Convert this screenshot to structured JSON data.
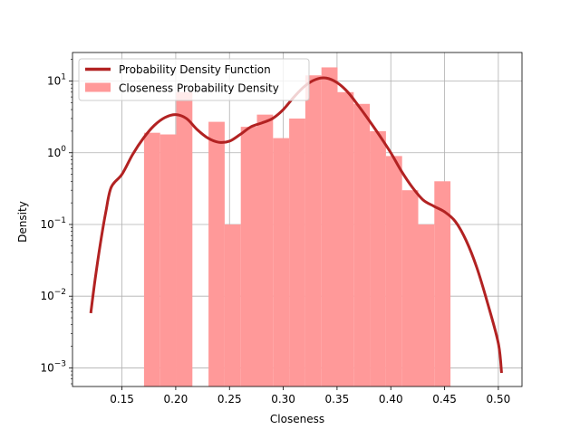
{
  "chart_data": {
    "type": "bar",
    "xlabel": "Closeness",
    "ylabel": "Density",
    "xlim": [
      0.104,
      0.522
    ],
    "ylim": [
      0.00055,
      25
    ],
    "yscale": "log",
    "grid": true,
    "legend_placement": "top-left",
    "x_ticks": [
      0.15,
      0.2,
      0.25,
      0.3,
      0.35,
      0.4,
      0.45,
      0.5
    ],
    "x_tick_labels": [
      "0.15",
      "0.20",
      "0.25",
      "0.30",
      "0.35",
      "0.40",
      "0.45",
      "0.50"
    ],
    "y_ticks": [
      {
        "value": 0.001,
        "base": "10",
        "exp": "−3"
      },
      {
        "value": 0.01,
        "base": "10",
        "exp": "−2"
      },
      {
        "value": 0.1,
        "base": "10",
        "exp": "−1"
      },
      {
        "value": 1,
        "base": "10",
        "exp": "0"
      },
      {
        "value": 10,
        "base": "10",
        "exp": "1"
      }
    ],
    "histogram": {
      "name": "Closeness Probability Density",
      "color": "#ff9999",
      "bins": [
        {
          "x0": 0.1705,
          "x1": 0.1855,
          "value": 1.9
        },
        {
          "x0": 0.1855,
          "x1": 0.2005,
          "value": 1.8
        },
        {
          "x0": 0.2005,
          "x1": 0.2155,
          "value": 7.0
        },
        {
          "x0": 0.2155,
          "x1": 0.2305,
          "value": 0
        },
        {
          "x0": 0.2305,
          "x1": 0.2455,
          "value": 2.7
        },
        {
          "x0": 0.2455,
          "x1": 0.2605,
          "value": 0.1
        },
        {
          "x0": 0.2605,
          "x1": 0.2755,
          "value": 2.3
        },
        {
          "x0": 0.2755,
          "x1": 0.2905,
          "value": 3.4
        },
        {
          "x0": 0.2905,
          "x1": 0.3055,
          "value": 1.6
        },
        {
          "x0": 0.3055,
          "x1": 0.3205,
          "value": 3.0
        },
        {
          "x0": 0.3205,
          "x1": 0.3355,
          "value": 12.0
        },
        {
          "x0": 0.3355,
          "x1": 0.3505,
          "value": 15.5
        },
        {
          "x0": 0.3505,
          "x1": 0.3655,
          "value": 7.0
        },
        {
          "x0": 0.3655,
          "x1": 0.3805,
          "value": 4.8
        },
        {
          "x0": 0.3805,
          "x1": 0.3955,
          "value": 2.0
        },
        {
          "x0": 0.3955,
          "x1": 0.4105,
          "value": 0.9
        },
        {
          "x0": 0.4105,
          "x1": 0.4255,
          "value": 0.3
        },
        {
          "x0": 0.4255,
          "x1": 0.4405,
          "value": 0.1
        },
        {
          "x0": 0.4405,
          "x1": 0.4555,
          "value": 0.4
        }
      ]
    },
    "pdf_line": {
      "name": "Probability Density Function",
      "color": "#b22222",
      "points": [
        [
          0.121,
          0.0058
        ],
        [
          0.125,
          0.017
        ],
        [
          0.13,
          0.055
        ],
        [
          0.135,
          0.15
        ],
        [
          0.14,
          0.33
        ],
        [
          0.15,
          0.5
        ],
        [
          0.16,
          0.95
        ],
        [
          0.17,
          1.6
        ],
        [
          0.18,
          2.4
        ],
        [
          0.19,
          3.1
        ],
        [
          0.2,
          3.4
        ],
        [
          0.21,
          3.0
        ],
        [
          0.22,
          2.1
        ],
        [
          0.23,
          1.6
        ],
        [
          0.24,
          1.4
        ],
        [
          0.25,
          1.45
        ],
        [
          0.26,
          1.8
        ],
        [
          0.27,
          2.3
        ],
        [
          0.28,
          2.6
        ],
        [
          0.29,
          3.0
        ],
        [
          0.3,
          4.0
        ],
        [
          0.31,
          6.0
        ],
        [
          0.32,
          8.5
        ],
        [
          0.33,
          10.5
        ],
        [
          0.34,
          11.0
        ],
        [
          0.35,
          9.5
        ],
        [
          0.36,
          7.0
        ],
        [
          0.37,
          4.5
        ],
        [
          0.38,
          2.8
        ],
        [
          0.39,
          1.7
        ],
        [
          0.4,
          1.0
        ],
        [
          0.41,
          0.55
        ],
        [
          0.42,
          0.33
        ],
        [
          0.43,
          0.22
        ],
        [
          0.44,
          0.18
        ],
        [
          0.45,
          0.15
        ],
        [
          0.46,
          0.11
        ],
        [
          0.47,
          0.06
        ],
        [
          0.48,
          0.025
        ],
        [
          0.49,
          0.008
        ],
        [
          0.5,
          0.0022
        ],
        [
          0.503,
          0.00085
        ]
      ]
    },
    "legend": [
      {
        "label": "Probability Density Function",
        "kind": "line",
        "color": "#b22222"
      },
      {
        "label": "Closeness Probability Density",
        "kind": "patch",
        "color": "#ff9999"
      }
    ]
  }
}
